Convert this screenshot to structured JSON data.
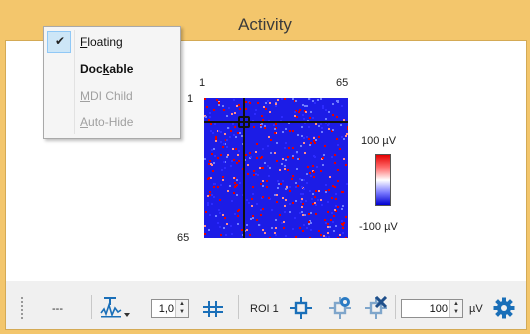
{
  "window": {
    "title": "Activity"
  },
  "context_menu": {
    "items": [
      {
        "label": "Floating",
        "state": "checked",
        "mnemonic": "F"
      },
      {
        "label": "Dockable",
        "state": "enabled",
        "mnemonic": "k"
      },
      {
        "label": "MDI Child",
        "state": "disabled",
        "mnemonic": "M"
      },
      {
        "label": "Auto-Hide",
        "state": "disabled",
        "mnemonic": "A"
      }
    ]
  },
  "heatmap": {
    "x_start": "1",
    "x_end": "65",
    "y_start": "1",
    "y_end": "65",
    "colorbar_max": "100 µV",
    "colorbar_min": "-100 µV",
    "colors": {
      "low": "#0000d0",
      "mid": "#ffffff",
      "high": "#e50000"
    }
  },
  "toolbar": {
    "dash_text": "---",
    "scale_value": "1,0",
    "roi_label": "ROI 1",
    "threshold_value": "100",
    "unit": "µV",
    "icons": [
      "grip-icon",
      "waveform-scale-icon",
      "dropdown-arrow-icon",
      "align-icon",
      "roi-add-icon",
      "roi-settings-icon",
      "roi-remove-icon",
      "gear-icon"
    ]
  }
}
